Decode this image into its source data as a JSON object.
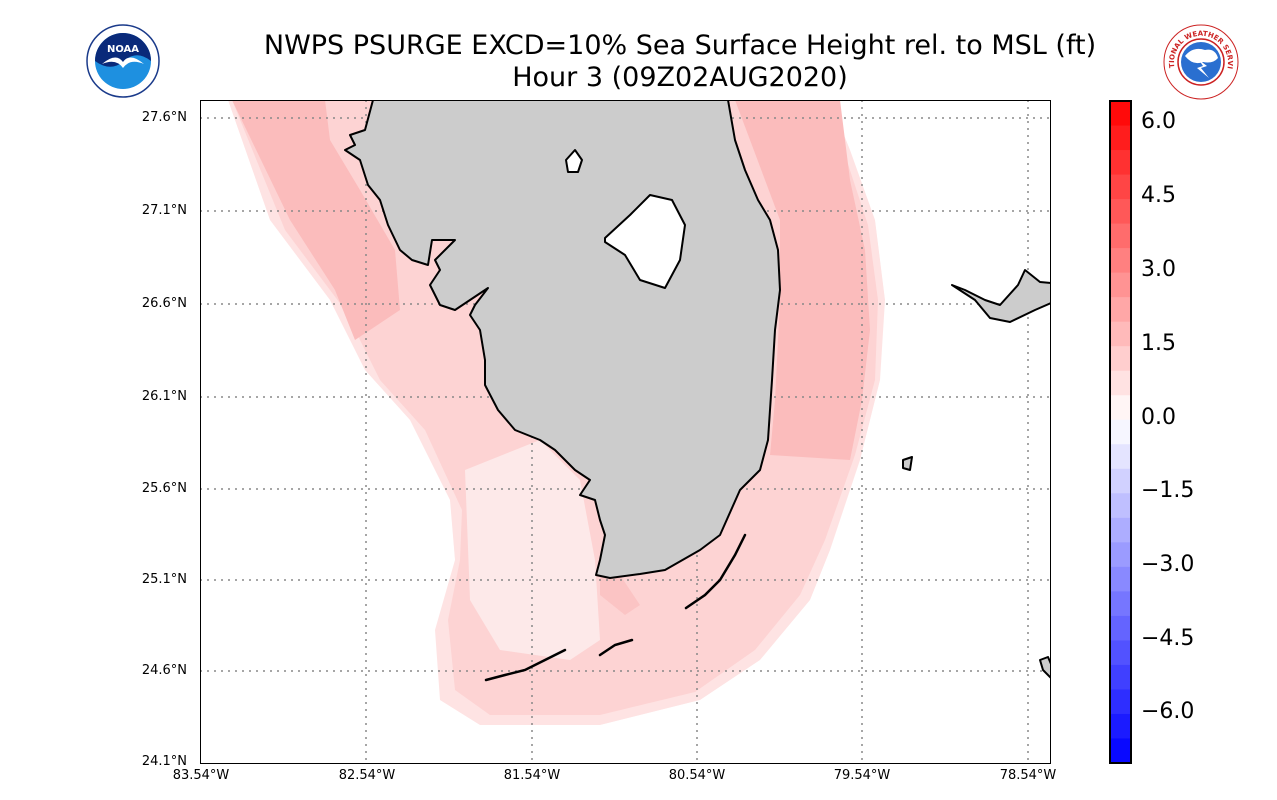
{
  "title": {
    "line1": "NWPS PSURGE EXCD=10% Sea Surface Height rel. to MSL (ft)",
    "line2": "Hour 3 (09Z02AUG2020)"
  },
  "logos": {
    "noaa": {
      "text": "NOAA",
      "icon": "noaa-seagull-emblem-icon"
    },
    "nws": {
      "text": "NATIONAL WEATHER SERVICE",
      "icon": "nws-emblem-icon"
    }
  },
  "map": {
    "latitude_labels": [
      "27.6°N",
      "27.1°N",
      "26.6°N",
      "26.1°N",
      "25.6°N",
      "25.1°N",
      "24.6°N",
      "24.1°N"
    ],
    "longitude_labels": [
      "83.54°W",
      "82.54°W",
      "81.54°W",
      "80.54°W",
      "79.54°W",
      "78.54°W"
    ],
    "land_color": "#cccccc",
    "water_color": "#ffffff",
    "gridlines": "dotted"
  },
  "colorbar": {
    "tick_labels": [
      "6.0",
      "4.5",
      "3.0",
      "1.5",
      "0.0",
      "−1.5",
      "−3.0",
      "−4.5",
      "−6.0"
    ],
    "range": [
      -7,
      6.5
    ],
    "colors": [
      "#0000ff",
      "#ff0000"
    ]
  }
}
